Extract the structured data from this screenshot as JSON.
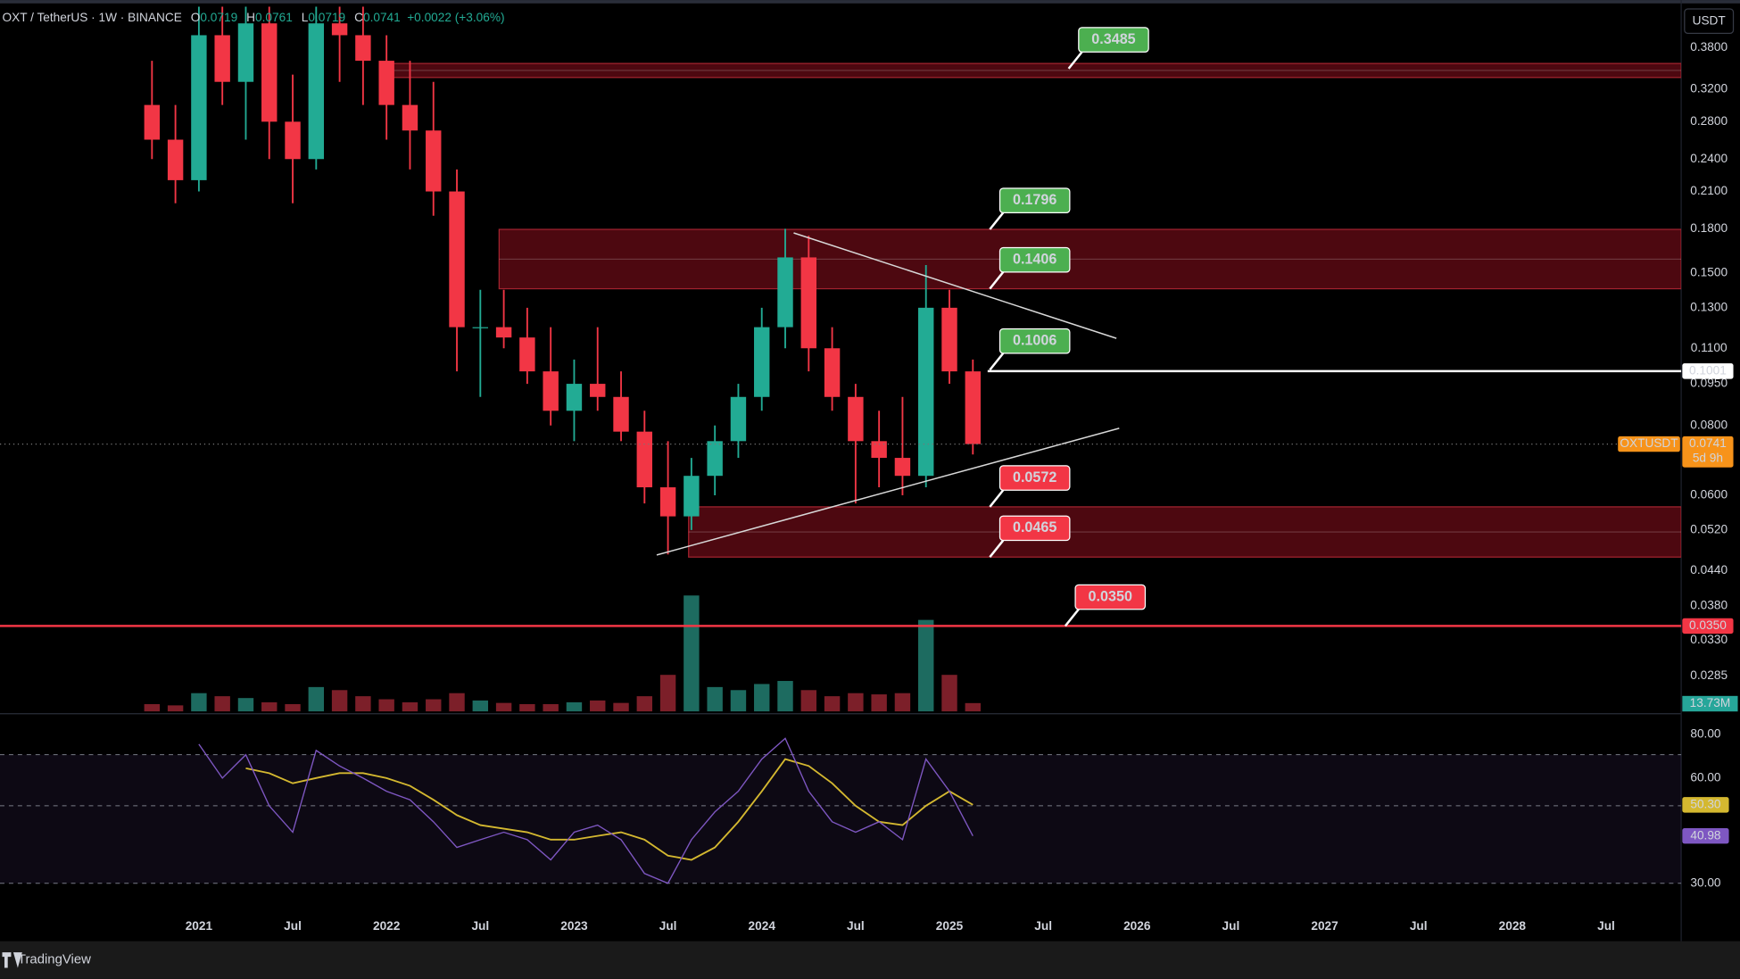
{
  "chart_data": [
    {
      "type": "candlestick",
      "header": {
        "symbol": "OXT / TetherUS · 1W · BINANCE",
        "ohlc": [
          {
            "name": "O",
            "value": "0.0719"
          },
          {
            "name": "H",
            "value": "0.0761"
          },
          {
            "name": "L",
            "value": "0.0719"
          },
          {
            "name": "C",
            "value": "0.0741"
          }
        ],
        "change": "+0.0022 (+3.06%)"
      },
      "axis_unit": "USDT",
      "x": [
        2020.75,
        2020.875,
        2021,
        2021.125,
        2021.25,
        2021.375,
        2021.5,
        2021.625,
        2021.75,
        2021.875,
        2022,
        2022.125,
        2022.25,
        2022.375,
        2022.5,
        2022.625,
        2022.75,
        2022.875,
        2023,
        2023.125,
        2023.25,
        2023.375,
        2023.5,
        2023.625,
        2023.75,
        2023.875,
        2024,
        2024.125,
        2024.25,
        2024.375,
        2024.5,
        2024.625,
        2024.75,
        2024.875,
        2025,
        2025.125
      ],
      "open": [
        0.3,
        0.26,
        0.22,
        0.4,
        0.33,
        0.42,
        0.28,
        0.24,
        0.42,
        0.4,
        0.36,
        0.3,
        0.27,
        0.21,
        0.12,
        0.12,
        0.115,
        0.1,
        0.085,
        0.095,
        0.09,
        0.078,
        0.062,
        0.055,
        0.065,
        0.075,
        0.09,
        0.12,
        0.16,
        0.11,
        0.09,
        0.075,
        0.07,
        0.065,
        0.13,
        0.1
      ],
      "high": [
        0.36,
        0.3,
        0.45,
        0.45,
        0.45,
        0.45,
        0.34,
        0.45,
        0.45,
        0.45,
        0.4,
        0.36,
        0.33,
        0.23,
        0.14,
        0.14,
        0.13,
        0.12,
        0.105,
        0.12,
        0.1,
        0.085,
        0.075,
        0.07,
        0.08,
        0.095,
        0.13,
        0.18,
        0.175,
        0.12,
        0.095,
        0.085,
        0.09,
        0.155,
        0.14,
        0.105
      ],
      "low": [
        0.24,
        0.2,
        0.21,
        0.3,
        0.26,
        0.24,
        0.2,
        0.23,
        0.33,
        0.3,
        0.26,
        0.23,
        0.19,
        0.1,
        0.09,
        0.11,
        0.095,
        0.08,
        0.075,
        0.085,
        0.075,
        0.058,
        0.047,
        0.052,
        0.06,
        0.07,
        0.085,
        0.11,
        0.1,
        0.085,
        0.058,
        0.062,
        0.06,
        0.062,
        0.095,
        0.071
      ],
      "close": [
        0.26,
        0.22,
        0.4,
        0.33,
        0.42,
        0.28,
        0.24,
        0.42,
        0.4,
        0.36,
        0.3,
        0.27,
        0.21,
        0.12,
        0.12,
        0.115,
        0.1,
        0.085,
        0.095,
        0.09,
        0.078,
        0.062,
        0.055,
        0.065,
        0.075,
        0.09,
        0.12,
        0.16,
        0.11,
        0.09,
        0.075,
        0.07,
        0.065,
        0.13,
        0.1,
        0.0741
      ],
      "up_color": "#22ab94",
      "down_color": "#f23645",
      "volume": {
        "values": [
          12,
          10,
          30,
          25,
          22,
          15,
          12,
          40,
          35,
          25,
          20,
          15,
          20,
          30,
          18,
          14,
          12,
          12,
          15,
          18,
          14,
          25,
          60,
          190,
          40,
          35,
          45,
          50,
          35,
          25,
          30,
          28,
          30,
          150,
          60,
          13.73
        ],
        "last_label": "13.73M",
        "ylim": [
          0,
          200
        ],
        "up_color": "#1d6b60",
        "down_color": "#7c1f29",
        "badge_color": "#26a69a"
      },
      "xlim": [
        2019.94,
        2028.9
      ],
      "xticks": [
        2021,
        {
          "value": 2021.5,
          "label": "Jul"
        },
        2022,
        {
          "value": 2022.5,
          "label": "Jul"
        },
        2023,
        {
          "value": 2023.5,
          "label": "Jul"
        },
        2024,
        {
          "value": 2024.5,
          "label": "Jul"
        },
        2025,
        {
          "value": 2025.5,
          "label": "Jul"
        },
        2026,
        {
          "value": 2026.5,
          "label": "Jul"
        },
        2027,
        {
          "value": 2027.5,
          "label": "Jul"
        },
        2028,
        {
          "value": 2028.5,
          "label": "Jul"
        }
      ],
      "ylim": [
        0.0246,
        0.454
      ],
      "log": true,
      "yticks": [
        {
          "value": 0.38,
          "label": "0.3800"
        },
        {
          "value": 0.32,
          "label": "0.3200"
        },
        {
          "value": 0.28,
          "label": "0.2800"
        },
        {
          "value": 0.24,
          "label": "0.2400"
        },
        {
          "value": 0.21,
          "label": "0.2100"
        },
        {
          "value": 0.18,
          "label": "0.1800"
        },
        {
          "value": 0.15,
          "label": "0.1500"
        },
        {
          "value": 0.13,
          "label": "0.1300"
        },
        {
          "value": 0.11,
          "label": "0.1100"
        },
        {
          "value": 0.095,
          "label": "0.0950"
        },
        {
          "value": 0.08,
          "label": "0.0800"
        },
        {
          "value": 0.06,
          "label": "0.0600"
        },
        {
          "value": 0.052,
          "label": "0.0520"
        },
        {
          "value": 0.044,
          "label": "0.0440"
        },
        {
          "value": 0.038,
          "label": "0.0380"
        },
        {
          "value": 0.033,
          "label": "0.0330"
        },
        {
          "value": 0.0285,
          "label": "0.0285"
        }
      ],
      "zones": [
        {
          "low": 0.336,
          "high": 0.356,
          "start": 2021.98
        },
        {
          "low": 0.1406,
          "high": 0.1796,
          "start": 2022.6
        },
        {
          "low": 0.0465,
          "high": 0.0572,
          "start": 2023.61
        }
      ],
      "trendlines": [
        [
          [
            2024.17,
            0.177
          ],
          [
            2025.89,
            0.1146
          ]
        ],
        [
          [
            2023.44,
            0.0469
          ],
          [
            2025.905,
            0.0791
          ]
        ]
      ],
      "hlines": [
        {
          "value": 0.1001,
          "label": "0.1001",
          "color": "#ffffff"
        },
        {
          "value": 0.035,
          "label": "0.0350",
          "color": "#f23645"
        }
      ],
      "callouts": [
        {
          "value": 0.3485,
          "label": "0.3485",
          "color": "#4caf50"
        },
        {
          "value": 0.1796,
          "label": "0.1796",
          "color": "#4caf50"
        },
        {
          "value": 0.1406,
          "label": "0.1406",
          "color": "#4caf50"
        },
        {
          "value": 0.1006,
          "label": "0.1006",
          "color": "#4caf50"
        },
        {
          "value": 0.0572,
          "label": "0.0572",
          "color": "#f23645"
        },
        {
          "value": 0.0465,
          "label": "0.0465",
          "color": "#f23645"
        },
        {
          "value": 0.035,
          "label": "0.0350",
          "color": "#f23645"
        }
      ],
      "last_price": {
        "symbol": "OXTUSDT",
        "value": 0.0741,
        "label": "0.0741",
        "countdown": "5d 9h",
        "color": "#f7931a"
      }
    },
    {
      "type": "line",
      "x": [
        2020.75,
        2020.875,
        2021,
        2021.125,
        2021.25,
        2021.375,
        2021.5,
        2021.625,
        2021.75,
        2021.875,
        2022,
        2022.125,
        2022.25,
        2022.375,
        2022.5,
        2022.625,
        2022.75,
        2022.875,
        2023,
        2023.125,
        2023.25,
        2023.375,
        2023.5,
        2023.625,
        2023.75,
        2023.875,
        2024,
        2024.125,
        2024.25,
        2024.375,
        2024.5,
        2024.625,
        2024.75,
        2024.875,
        2025,
        2025.125
      ],
      "series": [
        {
          "color": "#7e57c2",
          "last_label": "40.98",
          "values": [
            null,
            null,
            75,
            60,
            70,
            50,
            42,
            72,
            65,
            60,
            55,
            52,
            45,
            38,
            40,
            42,
            40,
            35,
            42,
            44,
            40,
            32,
            30,
            40,
            48,
            55,
            68,
            78,
            55,
            45,
            42,
            45,
            40,
            68,
            55,
            40.98
          ]
        },
        {
          "color": "#d4b830",
          "last_label": "50.30",
          "values": [
            null,
            null,
            null,
            null,
            64,
            62,
            58,
            60,
            62,
            62,
            60,
            57,
            52,
            47,
            44,
            43,
            42,
            40,
            40,
            41,
            42,
            40,
            36,
            35,
            38,
            45,
            55,
            68,
            65,
            58,
            50,
            45,
            44,
            50,
            55,
            50.3
          ]
        }
      ],
      "ylim": [
        25.5,
        90.4
      ],
      "log": true,
      "yticks": [
        {
          "value": 80,
          "label": "80.00"
        },
        {
          "value": 60,
          "label": "60.00"
        },
        {
          "value": 30,
          "label": "30.00"
        }
      ],
      "bands": [
        70,
        50,
        30
      ]
    }
  ],
  "footer": {
    "brand": "TradingView"
  }
}
